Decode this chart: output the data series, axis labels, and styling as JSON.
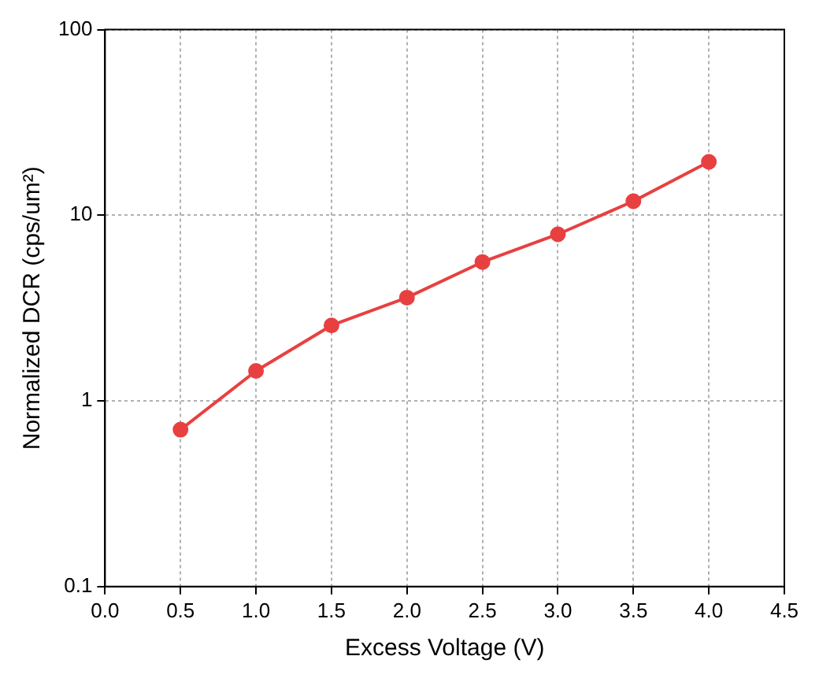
{
  "chart_data": {
    "type": "line",
    "xlabel": "Excess Voltage (V)",
    "ylabel": "Normalized DCR (cps/um²)",
    "x": [
      0.5,
      1.0,
      1.5,
      2.0,
      2.5,
      3.0,
      3.5,
      4.0
    ],
    "series": [
      {
        "color": "#e84040",
        "values": [
          0.7,
          1.45,
          2.55,
          3.6,
          5.6,
          7.9,
          11.9,
          19.4
        ]
      }
    ],
    "xlim": [
      0,
      4.5
    ],
    "xticks": [
      {
        "value": 0,
        "label": "0.0"
      },
      {
        "value": 0.5,
        "label": "0.5"
      },
      {
        "value": 1,
        "label": "1.0"
      },
      {
        "value": 1.5,
        "label": "1.5"
      },
      {
        "value": 2,
        "label": "2.0"
      },
      {
        "value": 2.5,
        "label": "2.5"
      },
      {
        "value": 3,
        "label": "3.0"
      },
      {
        "value": 3.5,
        "label": "3.5"
      },
      {
        "value": 4,
        "label": "4.0"
      },
      {
        "value": 4.5,
        "label": "4.5"
      }
    ],
    "ylim": [
      0.1,
      100
    ],
    "yticks": [
      0.1,
      1,
      10,
      100
    ],
    "log": true,
    "grid": true,
    "marker": "circle",
    "line_style": "solid",
    "legend": false
  }
}
